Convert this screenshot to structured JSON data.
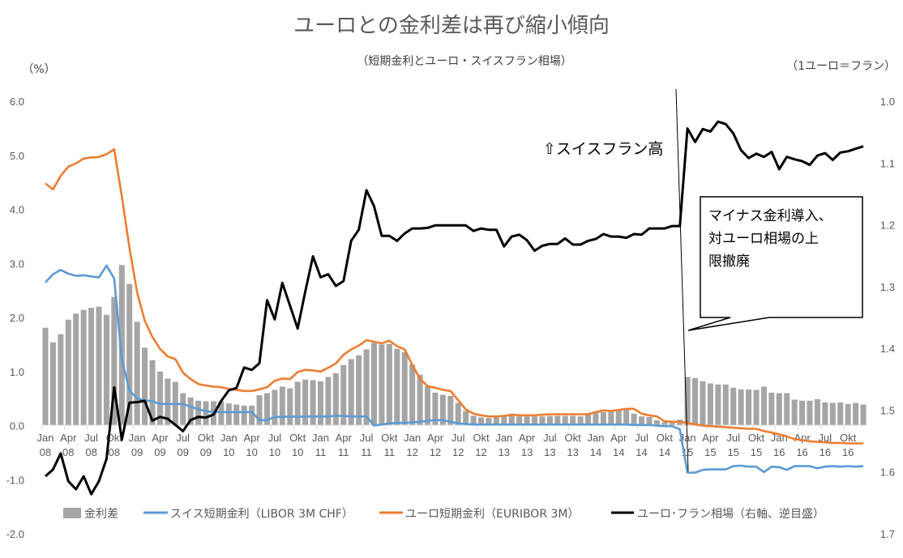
{
  "chart_data": {
    "type": "bar+line",
    "title": "ユーロとの金利差は再び縮小傾向",
    "subtitle": "（短期金利とユーロ・スイスフラン相場）",
    "ylabel_left": "（%）",
    "ylabel_right": "（1ユーロ＝フラン）",
    "ylim_left": [
      -2.0,
      6.0
    ],
    "yticks_left": [
      "6.0",
      "5.0",
      "4.0",
      "3.0",
      "2.0",
      "1.0",
      "0.0",
      "-1.0",
      "-2.0"
    ],
    "ylim_right": [
      1.0,
      1.7
    ],
    "right_axis_inverted": true,
    "yticks_right": [
      "1.0",
      "1.1",
      "1.2",
      "1.3",
      "1.4",
      "1.5",
      "1.6",
      "1.7"
    ],
    "x_start": "2008-01",
    "x_end": "2016-12",
    "x_tick_labels": [
      [
        "Jan",
        "08"
      ],
      [
        "Apr",
        "08"
      ],
      [
        "Jul",
        "08"
      ],
      [
        "Okt",
        "08"
      ],
      [
        "Jan",
        "09"
      ],
      [
        "Apr",
        "09"
      ],
      [
        "Jul",
        "09"
      ],
      [
        "Okt",
        "09"
      ],
      [
        "Jan",
        "10"
      ],
      [
        "Apr",
        "10"
      ],
      [
        "Jul",
        "10"
      ],
      [
        "Okt",
        "10"
      ],
      [
        "Jan",
        "11"
      ],
      [
        "Apr",
        "11"
      ],
      [
        "Jul",
        "11"
      ],
      [
        "Okt",
        "11"
      ],
      [
        "Jan",
        "12"
      ],
      [
        "Apr",
        "12"
      ],
      [
        "Jul",
        "12"
      ],
      [
        "Okt",
        "12"
      ],
      [
        "Jan",
        "13"
      ],
      [
        "Apr",
        "13"
      ],
      [
        "Jul",
        "13"
      ],
      [
        "Okt",
        "13"
      ],
      [
        "Jan",
        "14"
      ],
      [
        "Apr",
        "14"
      ],
      [
        "Jul",
        "14"
      ],
      [
        "Okt",
        "14"
      ],
      [
        "Jan",
        "15"
      ],
      [
        "Apr",
        "15"
      ],
      [
        "Jul",
        "15"
      ],
      [
        "Okt",
        "15"
      ],
      [
        "Jan",
        "16"
      ],
      [
        "Apr",
        "16"
      ],
      [
        "Jul",
        "16"
      ],
      [
        "Okt",
        "16"
      ]
    ],
    "grid": false,
    "legend_position": "bottom",
    "series": [
      {
        "name": "金利差",
        "type": "bar",
        "axis": "left",
        "color": "#a5a5a5",
        "values": [
          1.81,
          1.54,
          1.69,
          1.96,
          2.07,
          2.14,
          2.18,
          2.2,
          2.05,
          2.38,
          2.97,
          2.62,
          1.92,
          1.44,
          1.21,
          1.0,
          0.87,
          0.81,
          0.6,
          0.52,
          0.46,
          0.45,
          0.45,
          0.45,
          0.41,
          0.39,
          0.37,
          0.37,
          0.56,
          0.6,
          0.66,
          0.72,
          0.69,
          0.81,
          0.85,
          0.84,
          0.82,
          0.9,
          0.97,
          1.12,
          1.23,
          1.3,
          1.41,
          1.53,
          1.5,
          1.51,
          1.42,
          1.36,
          1.13,
          0.94,
          0.73,
          0.61,
          0.57,
          0.55,
          0.42,
          0.27,
          0.18,
          0.15,
          0.14,
          0.16,
          0.17,
          0.18,
          0.17,
          0.17,
          0.17,
          0.17,
          0.18,
          0.18,
          0.18,
          0.18,
          0.17,
          0.23,
          0.26,
          0.25,
          0.27,
          0.28,
          0.3,
          0.22,
          0.17,
          0.16,
          0.1,
          0.06,
          0.05,
          0.11,
          0.9,
          0.88,
          0.82,
          0.78,
          0.76,
          0.76,
          0.7,
          0.67,
          0.67,
          0.66,
          0.72,
          0.61,
          0.6,
          0.6,
          0.48,
          0.46,
          0.46,
          0.49,
          0.43,
          0.42,
          0.43,
          0.4,
          0.42,
          0.39
        ]
      },
      {
        "name": "スイス短期金利（LIBOR 3M CHF）",
        "type": "line",
        "axis": "left",
        "color": "#5b9bd5",
        "values": [
          2.65,
          2.8,
          2.88,
          2.81,
          2.77,
          2.78,
          2.76,
          2.74,
          2.96,
          2.72,
          1.22,
          0.65,
          0.5,
          0.47,
          0.45,
          0.4,
          0.4,
          0.4,
          0.4,
          0.35,
          0.3,
          0.27,
          0.25,
          0.25,
          0.25,
          0.25,
          0.25,
          0.25,
          0.1,
          0.1,
          0.16,
          0.16,
          0.17,
          0.16,
          0.17,
          0.17,
          0.17,
          0.17,
          0.18,
          0.18,
          0.17,
          0.17,
          0.17,
          0.0,
          0.02,
          0.04,
          0.05,
          0.05,
          0.06,
          0.07,
          0.09,
          0.1,
          0.1,
          0.07,
          0.04,
          0.03,
          0.02,
          0.02,
          0.02,
          0.02,
          0.02,
          0.02,
          0.02,
          0.02,
          0.02,
          0.02,
          0.02,
          0.02,
          0.02,
          0.02,
          0.02,
          0.02,
          0.02,
          0.02,
          0.02,
          0.02,
          0.02,
          0.01,
          0.01,
          0.01,
          0.0,
          -0.01,
          -0.01,
          -0.07,
          -0.87,
          -0.87,
          -0.82,
          -0.81,
          -0.81,
          -0.81,
          -0.75,
          -0.74,
          -0.76,
          -0.76,
          -0.86,
          -0.76,
          -0.77,
          -0.82,
          -0.75,
          -0.75,
          -0.75,
          -0.79,
          -0.76,
          -0.75,
          -0.76,
          -0.75,
          -0.76,
          -0.75
        ]
      },
      {
        "name": "ユーロ短期金利（EURIBOR 3M）",
        "type": "line",
        "axis": "left",
        "color": "#ed7d31",
        "values": [
          4.48,
          4.37,
          4.62,
          4.79,
          4.85,
          4.94,
          4.96,
          4.97,
          5.02,
          5.11,
          4.24,
          3.29,
          2.46,
          1.94,
          1.64,
          1.42,
          1.28,
          1.23,
          0.98,
          0.86,
          0.77,
          0.74,
          0.72,
          0.71,
          0.68,
          0.66,
          0.64,
          0.64,
          0.67,
          0.71,
          0.83,
          0.87,
          0.86,
          0.99,
          1.03,
          1.02,
          1.0,
          1.07,
          1.15,
          1.31,
          1.41,
          1.48,
          1.58,
          1.55,
          1.52,
          1.57,
          1.47,
          1.41,
          1.12,
          0.87,
          0.73,
          0.7,
          0.66,
          0.64,
          0.47,
          0.3,
          0.22,
          0.19,
          0.17,
          0.17,
          0.18,
          0.2,
          0.19,
          0.19,
          0.19,
          0.2,
          0.21,
          0.21,
          0.21,
          0.21,
          0.21,
          0.21,
          0.25,
          0.28,
          0.27,
          0.29,
          0.31,
          0.31,
          0.22,
          0.19,
          0.17,
          0.08,
          0.07,
          0.07,
          0.05,
          0.02,
          0.0,
          -0.01,
          -0.02,
          -0.03,
          -0.04,
          -0.05,
          -0.06,
          -0.06,
          -0.1,
          -0.13,
          -0.16,
          -0.2,
          -0.25,
          -0.27,
          -0.29,
          -0.3,
          -0.31,
          -0.32,
          -0.32,
          -0.33,
          -0.33,
          -0.33
        ]
      },
      {
        "name": "ユーロ･フラン相場（右軸、逆目盛）",
        "type": "line",
        "axis": "right",
        "color": "#000000",
        "values": [
          1.607,
          1.596,
          1.57,
          1.615,
          1.628,
          1.607,
          1.636,
          1.615,
          1.579,
          1.463,
          1.548,
          1.488,
          1.487,
          1.485,
          1.517,
          1.511,
          1.514,
          1.524,
          1.534,
          1.516,
          1.511,
          1.512,
          1.507,
          1.485,
          1.468,
          1.464,
          1.431,
          1.435,
          1.424,
          1.322,
          1.353,
          1.294,
          1.331,
          1.368,
          1.308,
          1.251,
          1.285,
          1.28,
          1.299,
          1.291,
          1.226,
          1.208,
          1.144,
          1.17,
          1.218,
          1.218,
          1.226,
          1.214,
          1.206,
          1.206,
          1.205,
          1.201,
          1.201,
          1.201,
          1.201,
          1.201,
          1.21,
          1.206,
          1.208,
          1.208,
          1.235,
          1.219,
          1.216,
          1.225,
          1.242,
          1.234,
          1.231,
          1.231,
          1.222,
          1.232,
          1.232,
          1.226,
          1.223,
          1.215,
          1.219,
          1.219,
          1.221,
          1.215,
          1.216,
          1.206,
          1.206,
          1.206,
          1.202,
          1.202,
          1.044,
          1.066,
          1.045,
          1.049,
          1.033,
          1.037,
          1.052,
          1.079,
          1.092,
          1.085,
          1.09,
          1.082,
          1.11,
          1.09,
          1.094,
          1.097,
          1.103,
          1.088,
          1.084,
          1.095,
          1.083,
          1.081,
          1.077,
          1.073
        ]
      }
    ],
    "annotations": {
      "swiss_franc_strong": "⇧スイスフラン高",
      "callout": [
        "マイナス金利導入、",
        "対ユーロ相場の上",
        "限撤廃"
      ]
    }
  }
}
